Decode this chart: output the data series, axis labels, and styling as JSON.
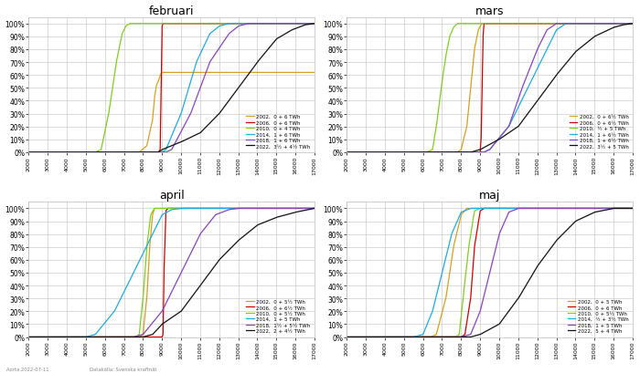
{
  "titles": [
    "februari",
    "mars",
    "april",
    "maj"
  ],
  "xlim": [
    2000,
    17000
  ],
  "ylim": [
    0,
    1.05
  ],
  "xticks": [
    2000,
    3000,
    4000,
    5000,
    6000,
    7000,
    8000,
    9000,
    10000,
    11000,
    12000,
    13000,
    14000,
    15000,
    16000,
    17000
  ],
  "yticks": [
    0,
    0.1,
    0.2,
    0.3,
    0.4,
    0.5,
    0.6,
    0.7,
    0.8,
    0.9,
    1.0
  ],
  "colors": [
    "#D4A020",
    "#CC0000",
    "#80CC20",
    "#20AADD",
    "#8844BB",
    "#101010"
  ],
  "years": [
    "2002",
    "2006",
    "2010",
    "2014",
    "2018",
    "2022"
  ],
  "legend_labels": {
    "februari": [
      "2002,  0 + 6 TWh",
      "2006,  0 + 6 TWh",
      "2010,  0 + 4 TWh",
      "2014,  1 + 6 TWh",
      "2018,  1 + 6 TWh",
      "2022,  3½ + 4½ TWh"
    ],
    "mars": [
      "2002,  0 + 6½ TWh",
      "2006,  0 + 6½ TWh",
      "2010,  ½ + 5 TWh",
      "2014,  1 + 6½ TWh",
      "2018,  1 + 6½ TWh",
      "2022,  3½ + 5 TWh"
    ],
    "april": [
      "2002,  0 + 5½ TWh",
      "2006,  0 + 6½ TWh",
      "2010,  0 + 5½ TWh",
      "2014,  1 + 5 TWh",
      "2018,  1½ + 5½ TWh",
      "2022,  2 + 4½ TWh"
    ],
    "maj": [
      "2002,  0 + 5 TWh",
      "2006,  0 + 6 TWh",
      "2010,  0 + 5½ TWh",
      "2014,  ½ + 3½ TWh",
      "2018,  1 + 5 TWh",
      "2022,  5 + 4 TWh"
    ]
  },
  "curves": {
    "februari": {
      "2002": [
        [
          2000,
          0.0
        ],
        [
          7800,
          0.0
        ],
        [
          8200,
          0.05
        ],
        [
          8500,
          0.25
        ],
        [
          8600,
          0.42
        ],
        [
          8700,
          0.52
        ],
        [
          8800,
          0.55
        ],
        [
          8900,
          0.6
        ],
        [
          9000,
          0.62
        ],
        [
          17000,
          0.62
        ]
      ],
      "2006": [
        [
          2000,
          0.0
        ],
        [
          8800,
          0.0
        ],
        [
          8900,
          0.02
        ],
        [
          8950,
          0.5
        ],
        [
          9000,
          0.98
        ],
        [
          9050,
          1.0
        ],
        [
          17000,
          1.0
        ]
      ],
      "2010": [
        [
          2000,
          0.0
        ],
        [
          5500,
          0.0
        ],
        [
          5800,
          0.02
        ],
        [
          6200,
          0.3
        ],
        [
          6600,
          0.7
        ],
        [
          6900,
          0.92
        ],
        [
          7100,
          0.98
        ],
        [
          7300,
          1.0
        ],
        [
          17000,
          1.0
        ]
      ],
      "2014": [
        [
          2000,
          0.0
        ],
        [
          9000,
          0.0
        ],
        [
          9200,
          0.02
        ],
        [
          10000,
          0.3
        ],
        [
          10800,
          0.7
        ],
        [
          11500,
          0.92
        ],
        [
          12000,
          0.98
        ],
        [
          12500,
          1.0
        ],
        [
          17000,
          1.0
        ]
      ],
      "2018": [
        [
          2000,
          0.0
        ],
        [
          9200,
          0.0
        ],
        [
          9500,
          0.02
        ],
        [
          10500,
          0.3
        ],
        [
          11500,
          0.7
        ],
        [
          12500,
          0.92
        ],
        [
          13000,
          0.98
        ],
        [
          13500,
          1.0
        ],
        [
          17000,
          1.0
        ]
      ],
      "2022": [
        [
          2000,
          0.0
        ],
        [
          8800,
          0.0
        ],
        [
          9000,
          0.02
        ],
        [
          10000,
          0.08
        ],
        [
          11000,
          0.15
        ],
        [
          12000,
          0.3
        ],
        [
          13000,
          0.5
        ],
        [
          14000,
          0.7
        ],
        [
          15000,
          0.88
        ],
        [
          15800,
          0.95
        ],
        [
          16500,
          0.99
        ],
        [
          17000,
          1.0
        ]
      ]
    },
    "mars": {
      "2002": [
        [
          2000,
          0.0
        ],
        [
          7800,
          0.0
        ],
        [
          8000,
          0.02
        ],
        [
          8300,
          0.2
        ],
        [
          8500,
          0.5
        ],
        [
          8700,
          0.8
        ],
        [
          8900,
          0.95
        ],
        [
          9000,
          0.98
        ],
        [
          9100,
          1.0
        ],
        [
          17000,
          1.0
        ]
      ],
      "2006": [
        [
          2000,
          0.0
        ],
        [
          9000,
          0.0
        ],
        [
          9050,
          0.1
        ],
        [
          9100,
          0.5
        ],
        [
          9150,
          0.9
        ],
        [
          9200,
          1.0
        ],
        [
          17000,
          1.0
        ]
      ],
      "2010": [
        [
          2000,
          0.0
        ],
        [
          6200,
          0.0
        ],
        [
          6500,
          0.02
        ],
        [
          6700,
          0.2
        ],
        [
          7000,
          0.55
        ],
        [
          7200,
          0.75
        ],
        [
          7400,
          0.9
        ],
        [
          7600,
          0.97
        ],
        [
          7800,
          1.0
        ],
        [
          17000,
          1.0
        ]
      ],
      "2014": [
        [
          2000,
          0.0
        ],
        [
          9200,
          0.0
        ],
        [
          9500,
          0.02
        ],
        [
          10500,
          0.2
        ],
        [
          11500,
          0.5
        ],
        [
          12500,
          0.8
        ],
        [
          13000,
          0.95
        ],
        [
          13500,
          1.0
        ],
        [
          17000,
          1.0
        ]
      ],
      "2018": [
        [
          2000,
          0.0
        ],
        [
          9200,
          0.0
        ],
        [
          9500,
          0.02
        ],
        [
          10500,
          0.2
        ],
        [
          11200,
          0.5
        ],
        [
          12000,
          0.8
        ],
        [
          12500,
          0.95
        ],
        [
          13000,
          1.0
        ],
        [
          17000,
          1.0
        ]
      ],
      "2022": [
        [
          2000,
          0.0
        ],
        [
          8500,
          0.0
        ],
        [
          9000,
          0.02
        ],
        [
          10000,
          0.1
        ],
        [
          11000,
          0.2
        ],
        [
          12000,
          0.4
        ],
        [
          13000,
          0.6
        ],
        [
          14000,
          0.78
        ],
        [
          15000,
          0.9
        ],
        [
          16000,
          0.97
        ],
        [
          16500,
          0.99
        ],
        [
          17000,
          1.0
        ]
      ]
    },
    "april": {
      "2002": [
        [
          2000,
          0.0
        ],
        [
          7800,
          0.0
        ],
        [
          8000,
          0.02
        ],
        [
          8200,
          0.3
        ],
        [
          8350,
          0.7
        ],
        [
          8500,
          0.95
        ],
        [
          8600,
          1.0
        ],
        [
          17000,
          1.0
        ]
      ],
      "2006": [
        [
          2000,
          0.0
        ],
        [
          9000,
          0.0
        ],
        [
          9050,
          0.02
        ],
        [
          9100,
          0.5
        ],
        [
          9200,
          0.98
        ],
        [
          9300,
          1.0
        ],
        [
          17000,
          1.0
        ]
      ],
      "2010": [
        [
          2000,
          0.0
        ],
        [
          7600,
          0.0
        ],
        [
          7800,
          0.02
        ],
        [
          8000,
          0.3
        ],
        [
          8200,
          0.7
        ],
        [
          8400,
          0.95
        ],
        [
          8600,
          1.0
        ],
        [
          17000,
          1.0
        ]
      ],
      "2014": [
        [
          2000,
          0.0
        ],
        [
          5000,
          0.0
        ],
        [
          5500,
          0.02
        ],
        [
          6500,
          0.2
        ],
        [
          7500,
          0.5
        ],
        [
          8500,
          0.8
        ],
        [
          9000,
          0.95
        ],
        [
          9500,
          0.99
        ],
        [
          10000,
          1.0
        ],
        [
          17000,
          1.0
        ]
      ],
      "2018": [
        [
          2000,
          0.0
        ],
        [
          7500,
          0.0
        ],
        [
          8000,
          0.02
        ],
        [
          9000,
          0.2
        ],
        [
          10000,
          0.5
        ],
        [
          11000,
          0.8
        ],
        [
          11800,
          0.95
        ],
        [
          12500,
          0.99
        ],
        [
          13000,
          1.0
        ],
        [
          17000,
          1.0
        ]
      ],
      "2022": [
        [
          2000,
          0.0
        ],
        [
          8000,
          0.0
        ],
        [
          8500,
          0.02
        ],
        [
          9000,
          0.1
        ],
        [
          10000,
          0.2
        ],
        [
          11000,
          0.4
        ],
        [
          12000,
          0.6
        ],
        [
          13000,
          0.75
        ],
        [
          14000,
          0.87
        ],
        [
          15000,
          0.93
        ],
        [
          16000,
          0.97
        ],
        [
          17000,
          1.0
        ]
      ]
    },
    "maj": {
      "2002": [
        [
          2000,
          0.0
        ],
        [
          6400,
          0.0
        ],
        [
          6700,
          0.02
        ],
        [
          7200,
          0.3
        ],
        [
          7600,
          0.7
        ],
        [
          8000,
          0.95
        ],
        [
          8300,
          1.0
        ],
        [
          17000,
          1.0
        ]
      ],
      "2006": [
        [
          2000,
          0.0
        ],
        [
          8000,
          0.0
        ],
        [
          8200,
          0.02
        ],
        [
          8500,
          0.3
        ],
        [
          8700,
          0.7
        ],
        [
          9000,
          0.98
        ],
        [
          9200,
          1.0
        ],
        [
          17000,
          1.0
        ]
      ],
      "2010": [
        [
          2000,
          0.0
        ],
        [
          7700,
          0.0
        ],
        [
          7900,
          0.02
        ],
        [
          8100,
          0.3
        ],
        [
          8400,
          0.7
        ],
        [
          8700,
          0.98
        ],
        [
          9000,
          1.0
        ],
        [
          17000,
          1.0
        ]
      ],
      "2014": [
        [
          2000,
          0.0
        ],
        [
          5500,
          0.0
        ],
        [
          6000,
          0.02
        ],
        [
          6500,
          0.2
        ],
        [
          7000,
          0.5
        ],
        [
          7500,
          0.8
        ],
        [
          8000,
          0.97
        ],
        [
          8500,
          1.0
        ],
        [
          17000,
          1.0
        ]
      ],
      "2018": [
        [
          2000,
          0.0
        ],
        [
          8000,
          0.0
        ],
        [
          8500,
          0.02
        ],
        [
          9000,
          0.2
        ],
        [
          9500,
          0.5
        ],
        [
          10000,
          0.8
        ],
        [
          10500,
          0.97
        ],
        [
          11000,
          1.0
        ],
        [
          17000,
          1.0
        ]
      ],
      "2022": [
        [
          2000,
          0.0
        ],
        [
          8500,
          0.0
        ],
        [
          9000,
          0.02
        ],
        [
          10000,
          0.1
        ],
        [
          11000,
          0.3
        ],
        [
          12000,
          0.55
        ],
        [
          13000,
          0.75
        ],
        [
          14000,
          0.9
        ],
        [
          15000,
          0.97
        ],
        [
          16000,
          1.0
        ],
        [
          17000,
          1.0
        ]
      ]
    }
  },
  "footer_left": "Aorta 2022-07-11",
  "footer_right": "Datakälla: Svenska kraftnät",
  "background_color": "#FFFFFF",
  "grid_color": "#CCCCCC"
}
